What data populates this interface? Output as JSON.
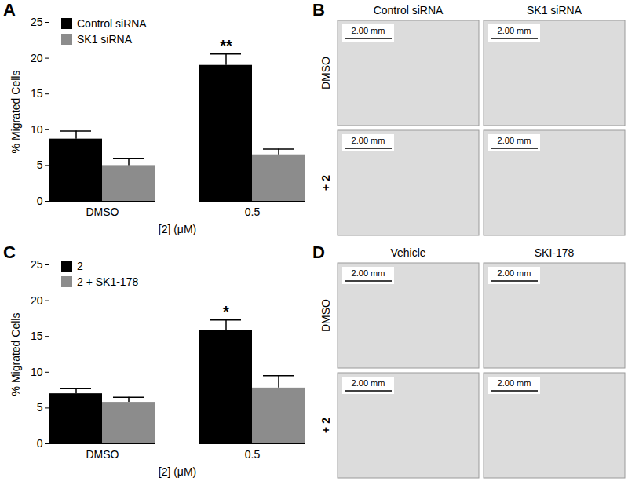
{
  "chart_data": [
    {
      "type": "bar",
      "panel_label": "A",
      "categories": [
        "DMSO",
        "0.5"
      ],
      "x_label": "[2] (μM)",
      "y_label": "% Migrated Cells",
      "ylim": [
        0,
        25
      ],
      "yticks": [
        0,
        5,
        10,
        15,
        20,
        25
      ],
      "legend": "top-left",
      "series": [
        {
          "name": "Control siRNA",
          "color": "#000000",
          "values": [
            8.7,
            19.0
          ],
          "errors": [
            1.1,
            1.6
          ]
        },
        {
          "name": "SK1 siRNA",
          "color": "#8c8c8c",
          "values": [
            5.0,
            6.5
          ],
          "errors": [
            1.0,
            0.8
          ]
        }
      ],
      "annotations": [
        {
          "text": "**",
          "category": "0.5",
          "series": "Control siRNA"
        }
      ]
    },
    {
      "type": "bar",
      "panel_label": "C",
      "categories": [
        "DMSO",
        "0.5"
      ],
      "x_label": "[2] (μM)",
      "y_label": "% Migrated Cells",
      "ylim": [
        0,
        25
      ],
      "yticks": [
        0,
        5,
        10,
        15,
        20,
        25
      ],
      "legend": "top-left",
      "series": [
        {
          "name": "2",
          "color": "#000000",
          "values": [
            7.0,
            15.8
          ],
          "errors": [
            0.7,
            1.5
          ]
        },
        {
          "name": "2 + SK1-178",
          "color": "#8c8c8c",
          "values": [
            5.8,
            7.8
          ],
          "errors": [
            0.7,
            1.7
          ]
        }
      ],
      "annotations": [
        {
          "text": "*",
          "category": "0.5",
          "series": "2"
        }
      ]
    }
  ],
  "image_panels": [
    {
      "panel_label": "B",
      "columns": [
        "Control siRNA",
        "SK1 siRNA"
      ],
      "rows": [
        "DMSO",
        "+ 2"
      ],
      "scale_bar": "2.00 mm"
    },
    {
      "panel_label": "D",
      "columns": [
        "Vehicle",
        "SKI-178"
      ],
      "rows": [
        "DMSO",
        "+ 2"
      ],
      "scale_bar": "2.00 mm"
    }
  ]
}
